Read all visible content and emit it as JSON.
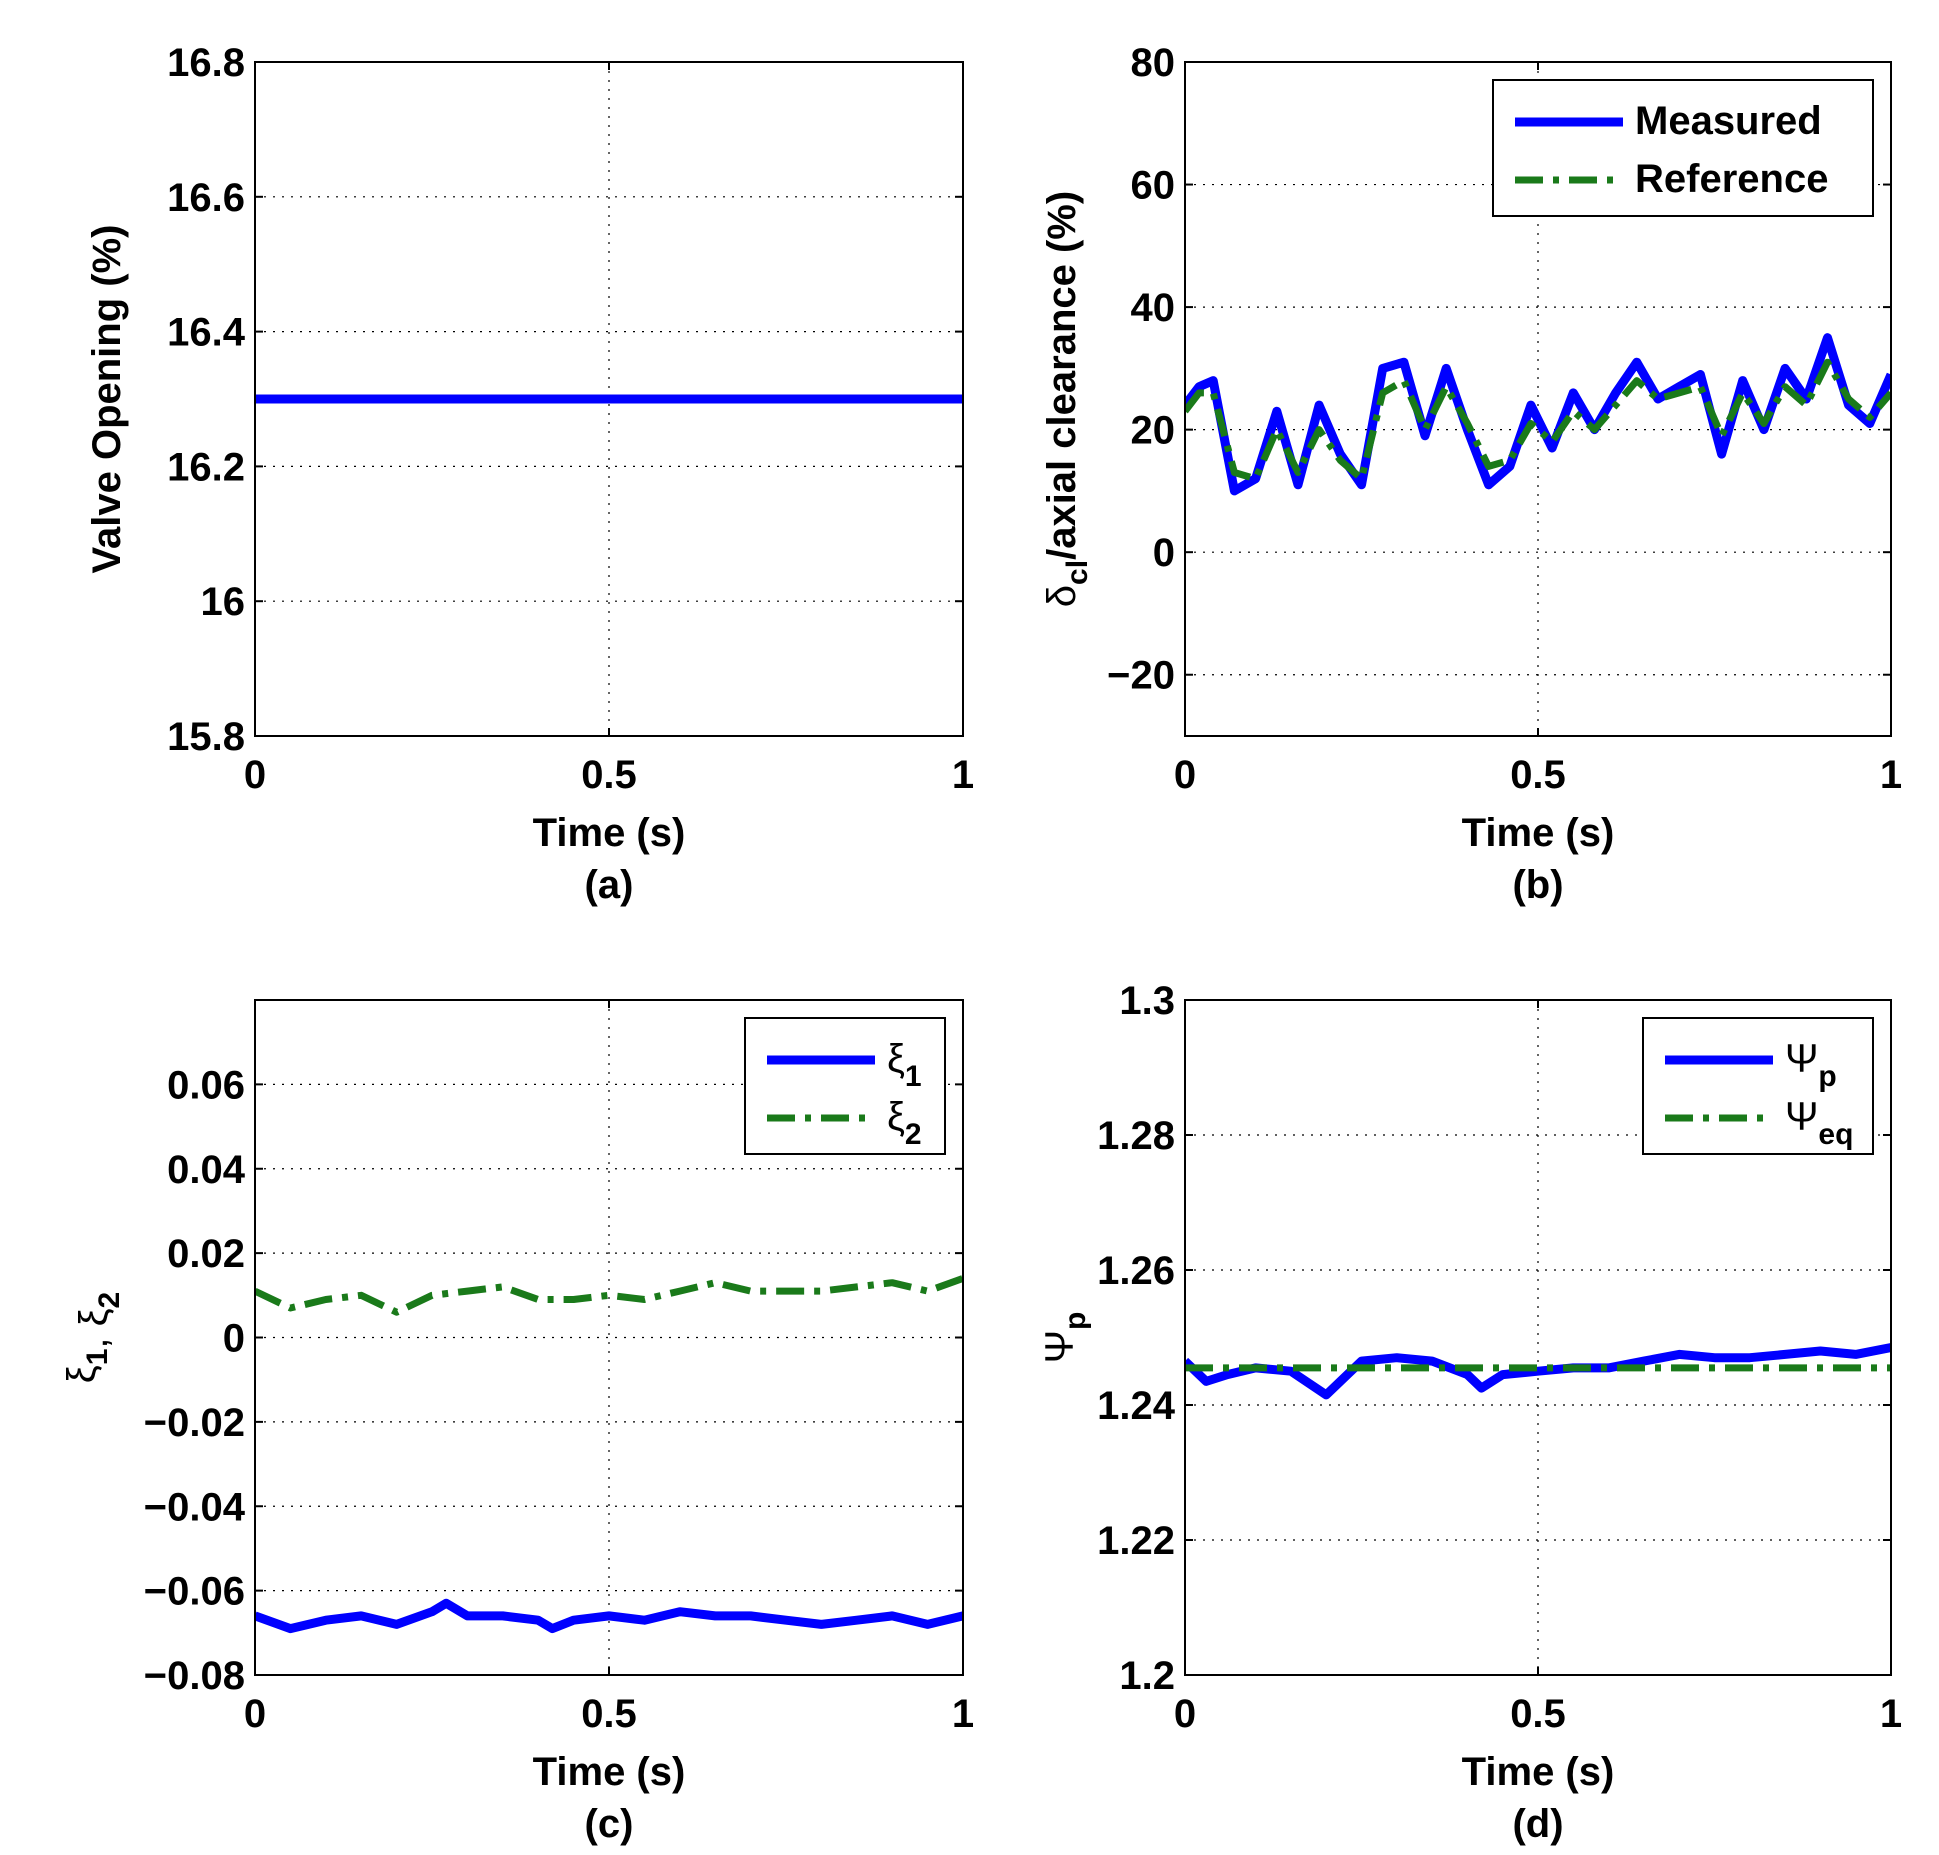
{
  "chart_data": [
    {
      "id": "a",
      "type": "line",
      "caption": "(a)",
      "xlabel": "Time (s)",
      "ylabel": "Valve Opening (%)",
      "xlim": [
        0,
        1
      ],
      "ylim": [
        15.8,
        16.8
      ],
      "xticks": [
        0,
        0.5,
        1
      ],
      "xtick_labels": [
        "0",
        "0.5",
        "1"
      ],
      "yticks": [
        15.8,
        16,
        16.2,
        16.4,
        16.6,
        16.8
      ],
      "ytick_labels": [
        "15.8",
        "16",
        "16.2",
        "16.4",
        "16.6",
        "16.8"
      ],
      "grid": true,
      "legend": null,
      "series": [
        {
          "name": "Valve Opening",
          "color": "#0000ff",
          "style": "solid",
          "x": [
            0,
            1
          ],
          "y": [
            16.3,
            16.3
          ]
        }
      ]
    },
    {
      "id": "b",
      "type": "line",
      "caption": "(b)",
      "xlabel": "Time (s)",
      "ylabel_main": "δ",
      "ylabel_sub": "cl",
      "ylabel_rest": "/axial clearance (%)",
      "xlim": [
        0,
        1
      ],
      "ylim": [
        -30,
        80
      ],
      "xticks": [
        0,
        0.5,
        1
      ],
      "xtick_labels": [
        "0",
        "0.5",
        "1"
      ],
      "yticks": [
        -20,
        0,
        20,
        40,
        60,
        80
      ],
      "ytick_labels": [
        "−20",
        "0",
        "20",
        "40",
        "60",
        "80"
      ],
      "grid": true,
      "legend": "top-right",
      "series": [
        {
          "name": "Measured",
          "label": "Measured",
          "color": "#0000ff",
          "style": "solid",
          "x": [
            0,
            0.02,
            0.04,
            0.07,
            0.1,
            0.13,
            0.16,
            0.19,
            0.22,
            0.25,
            0.28,
            0.31,
            0.34,
            0.37,
            0.4,
            0.43,
            0.46,
            0.49,
            0.52,
            0.55,
            0.58,
            0.61,
            0.64,
            0.67,
            0.7,
            0.73,
            0.76,
            0.79,
            0.82,
            0.85,
            0.88,
            0.91,
            0.94,
            0.97,
            1.0
          ],
          "y": [
            24,
            27,
            28,
            10,
            12,
            23,
            11,
            24,
            16,
            11,
            30,
            31,
            19,
            30,
            20,
            11,
            14,
            24,
            17,
            26,
            20,
            26,
            31,
            25,
            27,
            29,
            16,
            28,
            20,
            30,
            25,
            35,
            24,
            21,
            29
          ]
        },
        {
          "name": "Reference",
          "label": "Reference",
          "color": "#1a7a1a",
          "style": "dashdot",
          "x": [
            0,
            0.02,
            0.04,
            0.07,
            0.1,
            0.13,
            0.16,
            0.19,
            0.22,
            0.25,
            0.28,
            0.31,
            0.34,
            0.37,
            0.4,
            0.43,
            0.46,
            0.49,
            0.52,
            0.55,
            0.58,
            0.61,
            0.64,
            0.67,
            0.7,
            0.73,
            0.76,
            0.79,
            0.82,
            0.85,
            0.88,
            0.91,
            0.94,
            0.97,
            1.0
          ],
          "y": [
            23,
            26,
            26,
            13,
            12,
            20,
            13,
            20,
            15,
            12,
            26,
            28,
            20,
            27,
            21,
            14,
            15,
            21,
            18,
            23,
            20,
            24,
            28,
            25,
            26,
            27,
            19,
            26,
            21,
            27,
            24,
            31,
            25,
            22,
            26
          ]
        }
      ]
    },
    {
      "id": "c",
      "type": "line",
      "caption": "(c)",
      "xlabel": "Time (s)",
      "ylabel_parts": [
        {
          "text": "ξ",
          "sub": "1"
        },
        {
          "text": ", ξ",
          "sub": "2"
        }
      ],
      "xlim": [
        0,
        1
      ],
      "ylim": [
        -0.08,
        0.08
      ],
      "xticks": [
        0,
        0.5,
        1
      ],
      "xtick_labels": [
        "0",
        "0.5",
        "1"
      ],
      "yticks": [
        -0.08,
        -0.06,
        -0.04,
        -0.02,
        0,
        0.02,
        0.04,
        0.06
      ],
      "ytick_labels": [
        "−0.08",
        "−0.06",
        "−0.04",
        "−0.02",
        "0",
        "0.02",
        "0.04",
        "0.06"
      ],
      "grid": true,
      "legend": "top-right",
      "series": [
        {
          "name": "ξ1",
          "label": "ξ",
          "label_sub": "1",
          "color": "#0000ff",
          "style": "solid",
          "x": [
            0,
            0.05,
            0.1,
            0.15,
            0.2,
            0.25,
            0.27,
            0.3,
            0.35,
            0.4,
            0.42,
            0.45,
            0.5,
            0.55,
            0.6,
            0.65,
            0.7,
            0.75,
            0.8,
            0.85,
            0.9,
            0.95,
            1.0
          ],
          "y": [
            -0.066,
            -0.069,
            -0.067,
            -0.066,
            -0.068,
            -0.065,
            -0.063,
            -0.066,
            -0.066,
            -0.067,
            -0.069,
            -0.067,
            -0.066,
            -0.067,
            -0.065,
            -0.066,
            -0.066,
            -0.067,
            -0.068,
            -0.067,
            -0.066,
            -0.068,
            -0.066
          ]
        },
        {
          "name": "ξ2",
          "label": "ξ",
          "label_sub": "2",
          "color": "#1a7a1a",
          "style": "dashdot",
          "x": [
            0,
            0.05,
            0.1,
            0.15,
            0.2,
            0.25,
            0.3,
            0.35,
            0.4,
            0.45,
            0.5,
            0.55,
            0.6,
            0.65,
            0.7,
            0.75,
            0.8,
            0.85,
            0.9,
            0.95,
            1.0
          ],
          "y": [
            0.011,
            0.007,
            0.009,
            0.01,
            0.006,
            0.01,
            0.011,
            0.012,
            0.009,
            0.009,
            0.01,
            0.009,
            0.011,
            0.013,
            0.011,
            0.011,
            0.011,
            0.012,
            0.013,
            0.011,
            0.014
          ]
        }
      ]
    },
    {
      "id": "d",
      "type": "line",
      "caption": "(d)",
      "xlabel": "Time (s)",
      "ylabel_main": "Ψ",
      "ylabel_sub": "p",
      "xlim": [
        0,
        1
      ],
      "ylim": [
        1.2,
        1.3
      ],
      "xticks": [
        0,
        0.5,
        1
      ],
      "xtick_labels": [
        "0",
        "0.5",
        "1"
      ],
      "yticks": [
        1.2,
        1.22,
        1.24,
        1.26,
        1.28,
        1.3
      ],
      "ytick_labels": [
        "1.2",
        "1.22",
        "1.24",
        "1.26",
        "1.28",
        "1.3"
      ],
      "grid": true,
      "legend": "top-right",
      "series": [
        {
          "name": "Ψp",
          "label": "Ψ",
          "label_sub": "p",
          "color": "#0000ff",
          "style": "solid",
          "x": [
            0,
            0.03,
            0.06,
            0.1,
            0.15,
            0.2,
            0.25,
            0.3,
            0.35,
            0.4,
            0.42,
            0.45,
            0.5,
            0.55,
            0.6,
            0.65,
            0.7,
            0.75,
            0.8,
            0.85,
            0.9,
            0.95,
            1.0
          ],
          "y": [
            1.2465,
            1.2435,
            1.2445,
            1.2455,
            1.245,
            1.2415,
            1.2465,
            1.247,
            1.2465,
            1.2445,
            1.2425,
            1.2445,
            1.245,
            1.2455,
            1.2455,
            1.2465,
            1.2475,
            1.247,
            1.247,
            1.2475,
            1.248,
            1.2475,
            1.2485
          ]
        },
        {
          "name": "Ψeq",
          "label": "Ψ",
          "label_sub": "eq",
          "color": "#1a7a1a",
          "style": "dashdot",
          "x": [
            0,
            1
          ],
          "y": [
            1.2455,
            1.2455
          ]
        }
      ]
    }
  ]
}
